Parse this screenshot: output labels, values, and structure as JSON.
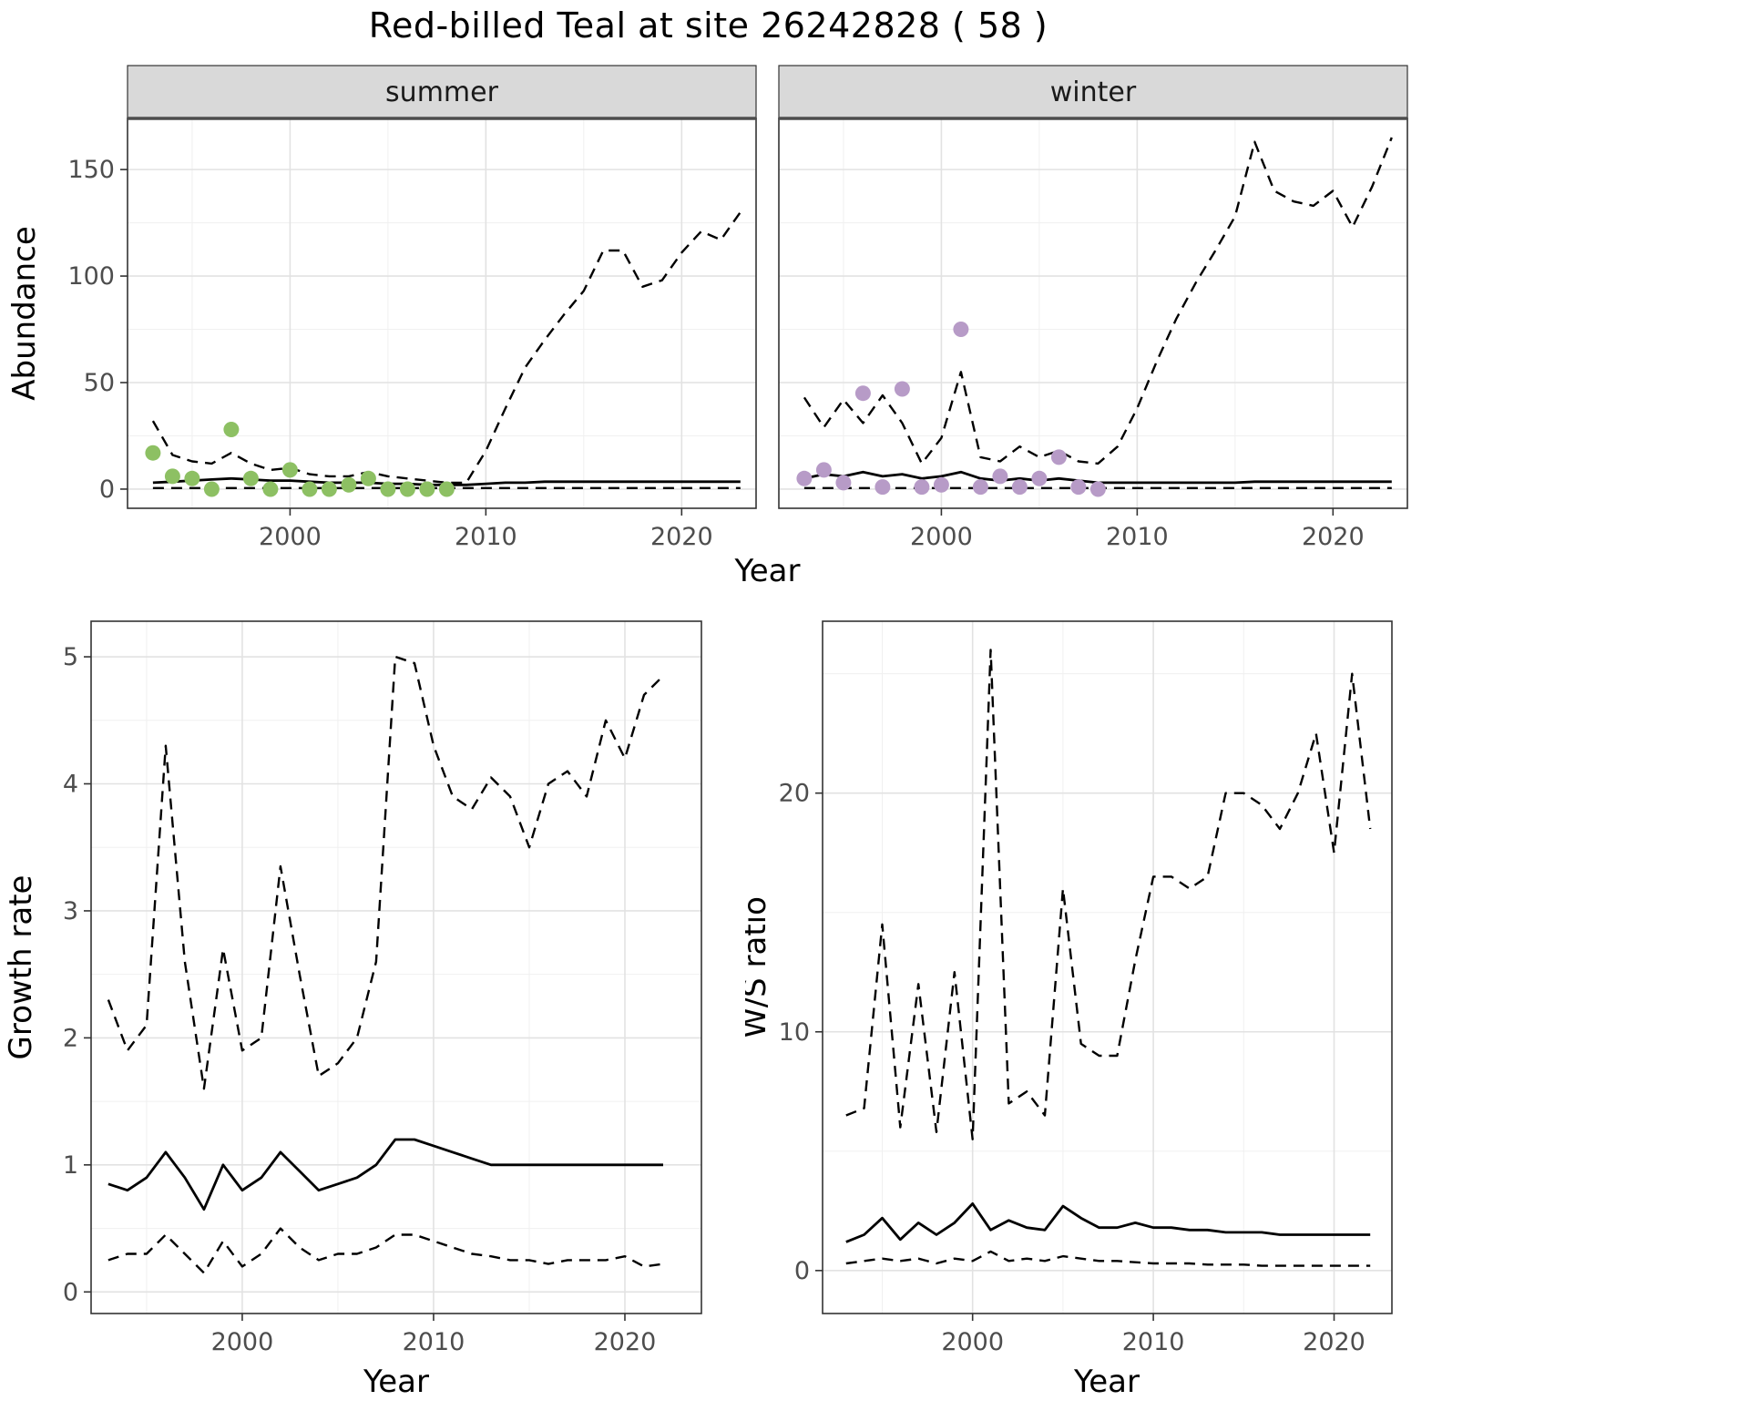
{
  "title": "Red-billed Teal at site 26242828 ( 58 )",
  "colors": {
    "summer_points": "#8DC063",
    "winter_points": "#B79BC7",
    "line": "#000000",
    "strip_bg": "#D9D9D9",
    "strip_text": "#1a1a1a",
    "grid_major": "#E2E2E2",
    "grid_minor": "#F0F0F0",
    "panel_border": "#333333",
    "axis_text": "#4D4D4D",
    "axis_title": "#000000"
  },
  "chart_data": [
    {
      "id": "abundance-summer",
      "type": "line",
      "facet_label": "summer",
      "xlabel": "Year",
      "ylabel": "Abundance",
      "xlim": [
        1991.7,
        2023.8
      ],
      "ylim": [
        -9,
        174
      ],
      "xticks": [
        2000,
        2010,
        2020
      ],
      "yticks": [
        0,
        50,
        100,
        150
      ],
      "x_start_year": 1993,
      "series": [
        {
          "name": "upper-95ci",
          "style": "dashed",
          "color": "#000000",
          "values": [
            32,
            16,
            13,
            12,
            17,
            12,
            9,
            10,
            7,
            6,
            6,
            8,
            6,
            5,
            4,
            3,
            3,
            18,
            38,
            57,
            70,
            82,
            93,
            112,
            112,
            95,
            98,
            111,
            121,
            117,
            130
          ]
        },
        {
          "name": "fitted-median",
          "style": "solid",
          "color": "#000000",
          "values": [
            3,
            3.5,
            4,
            4.5,
            5,
            4.5,
            4,
            4,
            3.5,
            3,
            3,
            3,
            2.5,
            2.5,
            2,
            2,
            2,
            2.5,
            3,
            3,
            3.5,
            3.5,
            3.5,
            3.5,
            3.5,
            3.5,
            3.5,
            3.5,
            3.5,
            3.5,
            3.5
          ]
        },
        {
          "name": "lower-95ci",
          "style": "dashed",
          "color": "#000000",
          "values": [
            0.5,
            0.5,
            0.5,
            0.5,
            0.5,
            0.5,
            0.5,
            0.5,
            0.5,
            0.5,
            0.5,
            0.5,
            0.5,
            0.5,
            0.5,
            0.5,
            0.5,
            0.5,
            0.5,
            0.5,
            0.5,
            0.5,
            0.5,
            0.5,
            0.5,
            0.5,
            0.5,
            0.5,
            0.5,
            0.5,
            0.5
          ]
        },
        {
          "name": "observed-counts",
          "style": "points",
          "color": "#8DC063",
          "x": [
            1993,
            1994,
            1995,
            1996,
            1997,
            1998,
            1999,
            2000,
            2001,
            2002,
            2003,
            2004,
            2005,
            2006,
            2007,
            2008
          ],
          "values": [
            17,
            6,
            5,
            0,
            28,
            5,
            0,
            9,
            0,
            0,
            2,
            5,
            0,
            0,
            0,
            0
          ]
        }
      ]
    },
    {
      "id": "abundance-winter",
      "type": "line",
      "facet_label": "winter",
      "xlabel": "Year",
      "ylabel": "Abundance",
      "xlim": [
        1991.7,
        2023.8
      ],
      "ylim": [
        -9,
        174
      ],
      "xticks": [
        2000,
        2010,
        2020
      ],
      "yticks": [
        0,
        50,
        100,
        150
      ],
      "x_start_year": 1993,
      "series": [
        {
          "name": "upper-95ci",
          "style": "dashed",
          "color": "#000000",
          "values": [
            43,
            29,
            42,
            31,
            44,
            31,
            12,
            24,
            55,
            15,
            13,
            20,
            15,
            18,
            13,
            12,
            20,
            38,
            60,
            80,
            97,
            112,
            128,
            163,
            140,
            135,
            133,
            140,
            123,
            142,
            165
          ]
        },
        {
          "name": "fitted-median",
          "style": "solid",
          "color": "#000000",
          "values": [
            5,
            7,
            6,
            8,
            6,
            7,
            5,
            6,
            8,
            5,
            4,
            5,
            4,
            5,
            4,
            3,
            3,
            3,
            3,
            3,
            3,
            3,
            3,
            3.5,
            3.5,
            3.5,
            3.5,
            3.5,
            3.5,
            3.5,
            3.5
          ]
        },
        {
          "name": "lower-95ci",
          "style": "dashed",
          "color": "#000000",
          "values": [
            0.5,
            0.5,
            0.5,
            0.5,
            0.5,
            0.5,
            0.5,
            0.5,
            0.5,
            0.5,
            0.5,
            0.5,
            0.5,
            0.5,
            0.5,
            0.5,
            0.5,
            0.5,
            0.5,
            0.5,
            0.5,
            0.5,
            0.5,
            0.5,
            0.5,
            0.5,
            0.5,
            0.5,
            0.5,
            0.5,
            0.5
          ]
        },
        {
          "name": "observed-counts",
          "style": "points",
          "color": "#B79BC7",
          "x": [
            1993,
            1994,
            1995,
            1996,
            1997,
            1998,
            1999,
            2000,
            2001,
            2002,
            2003,
            2004,
            2005,
            2006,
            2007,
            2008
          ],
          "values": [
            5,
            9,
            3,
            45,
            1,
            47,
            1,
            2,
            75,
            1,
            6,
            1,
            5,
            15,
            1,
            0
          ]
        }
      ]
    },
    {
      "id": "growth-rate",
      "type": "line",
      "facet_label": "",
      "xlabel": "Year",
      "ylabel": "Growth rate",
      "xlim": [
        1992.1,
        2024.0
      ],
      "ylim": [
        -0.17,
        5.28
      ],
      "xticks": [
        2000,
        2010,
        2020
      ],
      "yticks": [
        0,
        1,
        2,
        3,
        4,
        5
      ],
      "x_start_year": 1993,
      "series": [
        {
          "name": "upper-95ci",
          "style": "dashed",
          "color": "#000000",
          "values": [
            2.3,
            1.9,
            2.1,
            4.3,
            2.6,
            1.6,
            2.7,
            1.9,
            2.0,
            3.35,
            2.5,
            1.7,
            1.8,
            2.0,
            2.6,
            5.0,
            4.95,
            4.3,
            3.9,
            3.8,
            4.05,
            3.9,
            3.5,
            4.0,
            4.1,
            3.9,
            4.5,
            4.2,
            4.7,
            4.85
          ]
        },
        {
          "name": "fitted-median",
          "style": "solid",
          "color": "#000000",
          "values": [
            0.85,
            0.8,
            0.9,
            1.1,
            0.9,
            0.65,
            1.0,
            0.8,
            0.9,
            1.1,
            0.95,
            0.8,
            0.85,
            0.9,
            1.0,
            1.2,
            1.2,
            1.15,
            1.1,
            1.05,
            1.0,
            1.0,
            1.0,
            1.0,
            1.0,
            1.0,
            1.0,
            1.0,
            1.0,
            1.0
          ]
        },
        {
          "name": "lower-95ci",
          "style": "dashed",
          "color": "#000000",
          "values": [
            0.25,
            0.3,
            0.3,
            0.45,
            0.3,
            0.15,
            0.4,
            0.2,
            0.3,
            0.5,
            0.35,
            0.25,
            0.3,
            0.3,
            0.35,
            0.45,
            0.45,
            0.4,
            0.35,
            0.3,
            0.28,
            0.25,
            0.25,
            0.22,
            0.25,
            0.25,
            0.25,
            0.28,
            0.2,
            0.22
          ]
        }
      ]
    },
    {
      "id": "ws-ratio",
      "type": "line",
      "facet_label": "",
      "xlabel": "Year",
      "ylabel": "W/S ratio",
      "xlim": [
        1991.7,
        2023.2
      ],
      "ylim": [
        -1.8,
        27.2
      ],
      "xticks": [
        2000,
        2010,
        2020
      ],
      "yticks": [
        0,
        10,
        20
      ],
      "x_start_year": 1993,
      "series": [
        {
          "name": "upper-95ci",
          "style": "dashed",
          "color": "#000000",
          "values": [
            6.5,
            6.8,
            14.5,
            6.0,
            12.0,
            5.8,
            12.5,
            5.5,
            26.0,
            7.0,
            7.5,
            6.5,
            16.0,
            9.5,
            9.0,
            9.0,
            13.0,
            16.5,
            16.5,
            16.0,
            16.5,
            20.0,
            20.0,
            19.5,
            18.5,
            20.0,
            22.5,
            17.5,
            25.0,
            18.5
          ]
        },
        {
          "name": "fitted-median",
          "style": "solid",
          "color": "#000000",
          "values": [
            1.2,
            1.5,
            2.2,
            1.3,
            2.0,
            1.5,
            2.0,
            2.8,
            1.7,
            2.1,
            1.8,
            1.7,
            2.7,
            2.2,
            1.8,
            1.8,
            2.0,
            1.8,
            1.8,
            1.7,
            1.7,
            1.6,
            1.6,
            1.6,
            1.5,
            1.5,
            1.5,
            1.5,
            1.5,
            1.5
          ]
        },
        {
          "name": "lower-95ci",
          "style": "dashed",
          "color": "#000000",
          "values": [
            0.3,
            0.4,
            0.5,
            0.4,
            0.5,
            0.3,
            0.5,
            0.4,
            0.8,
            0.4,
            0.5,
            0.4,
            0.6,
            0.5,
            0.4,
            0.4,
            0.35,
            0.3,
            0.3,
            0.3,
            0.25,
            0.25,
            0.25,
            0.2,
            0.2,
            0.2,
            0.2,
            0.2,
            0.2,
            0.2
          ]
        }
      ]
    }
  ]
}
